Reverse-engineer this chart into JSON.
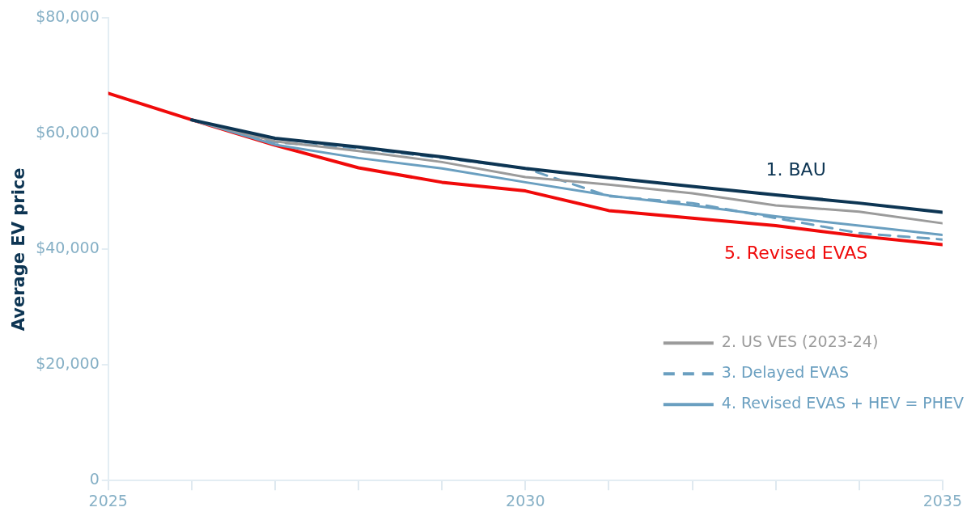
{
  "chart_data": {
    "type": "line",
    "ylabel": "Average EV price",
    "x": [
      2025,
      2026,
      2027,
      2028,
      2029,
      2030,
      2031,
      2032,
      2033,
      2034,
      2035
    ],
    "series": [
      {
        "name": "1. BAU",
        "color": "#0d3553",
        "values": [
          null,
          62400,
          59200,
          57700,
          56000,
          54000,
          52400,
          50900,
          49400,
          48000,
          46400
        ]
      },
      {
        "name": "2. US VES (2023-24)",
        "color": "#9b9b9b",
        "values": [
          null,
          62400,
          58700,
          57000,
          55100,
          52500,
          51200,
          49700,
          47600,
          46500,
          44500
        ]
      },
      {
        "name": "3. Delayed EVAS",
        "color": "#6a9fc0",
        "line_style": "dashed",
        "values": [
          null,
          62400,
          58500,
          57500,
          55800,
          54000,
          49200,
          48000,
          45400,
          42800,
          41700
        ]
      },
      {
        "name": "4. Revised EVAS + HEV = PHEV",
        "color": "#6a9fc0",
        "values": [
          null,
          62400,
          58100,
          55800,
          54000,
          51600,
          49300,
          47600,
          45700,
          44100,
          42500
        ]
      },
      {
        "name": "5. Revised EVAS",
        "color": "#f00a0a",
        "values": [
          67000,
          62400,
          58000,
          54100,
          51600,
          50100,
          46700,
          45400,
          44100,
          42300,
          40800
        ]
      }
    ],
    "xlim": [
      2025,
      2035
    ],
    "xticks": [
      2025,
      {
        "value": 2026,
        "label": null
      },
      {
        "value": 2027,
        "label": null
      },
      {
        "value": 2028,
        "label": null
      },
      {
        "value": 2029,
        "label": null
      },
      2030,
      {
        "value": 2031,
        "label": null
      },
      {
        "value": 2032,
        "label": null
      },
      {
        "value": 2033,
        "label": null
      },
      {
        "value": 2034,
        "label": null
      },
      2035
    ],
    "ylim": [
      0,
      80000
    ],
    "yticks": [
      {
        "value": 0,
        "label": "0"
      },
      {
        "value": 20000,
        "label": "$20,000"
      },
      {
        "value": 40000,
        "label": "$40,000"
      },
      {
        "value": 60000,
        "label": "$60,000"
      },
      {
        "value": 80000,
        "label": "$80,000"
      }
    ],
    "grid": false,
    "legend": "bottom right",
    "marker": "none",
    "line_style": "solid"
  }
}
